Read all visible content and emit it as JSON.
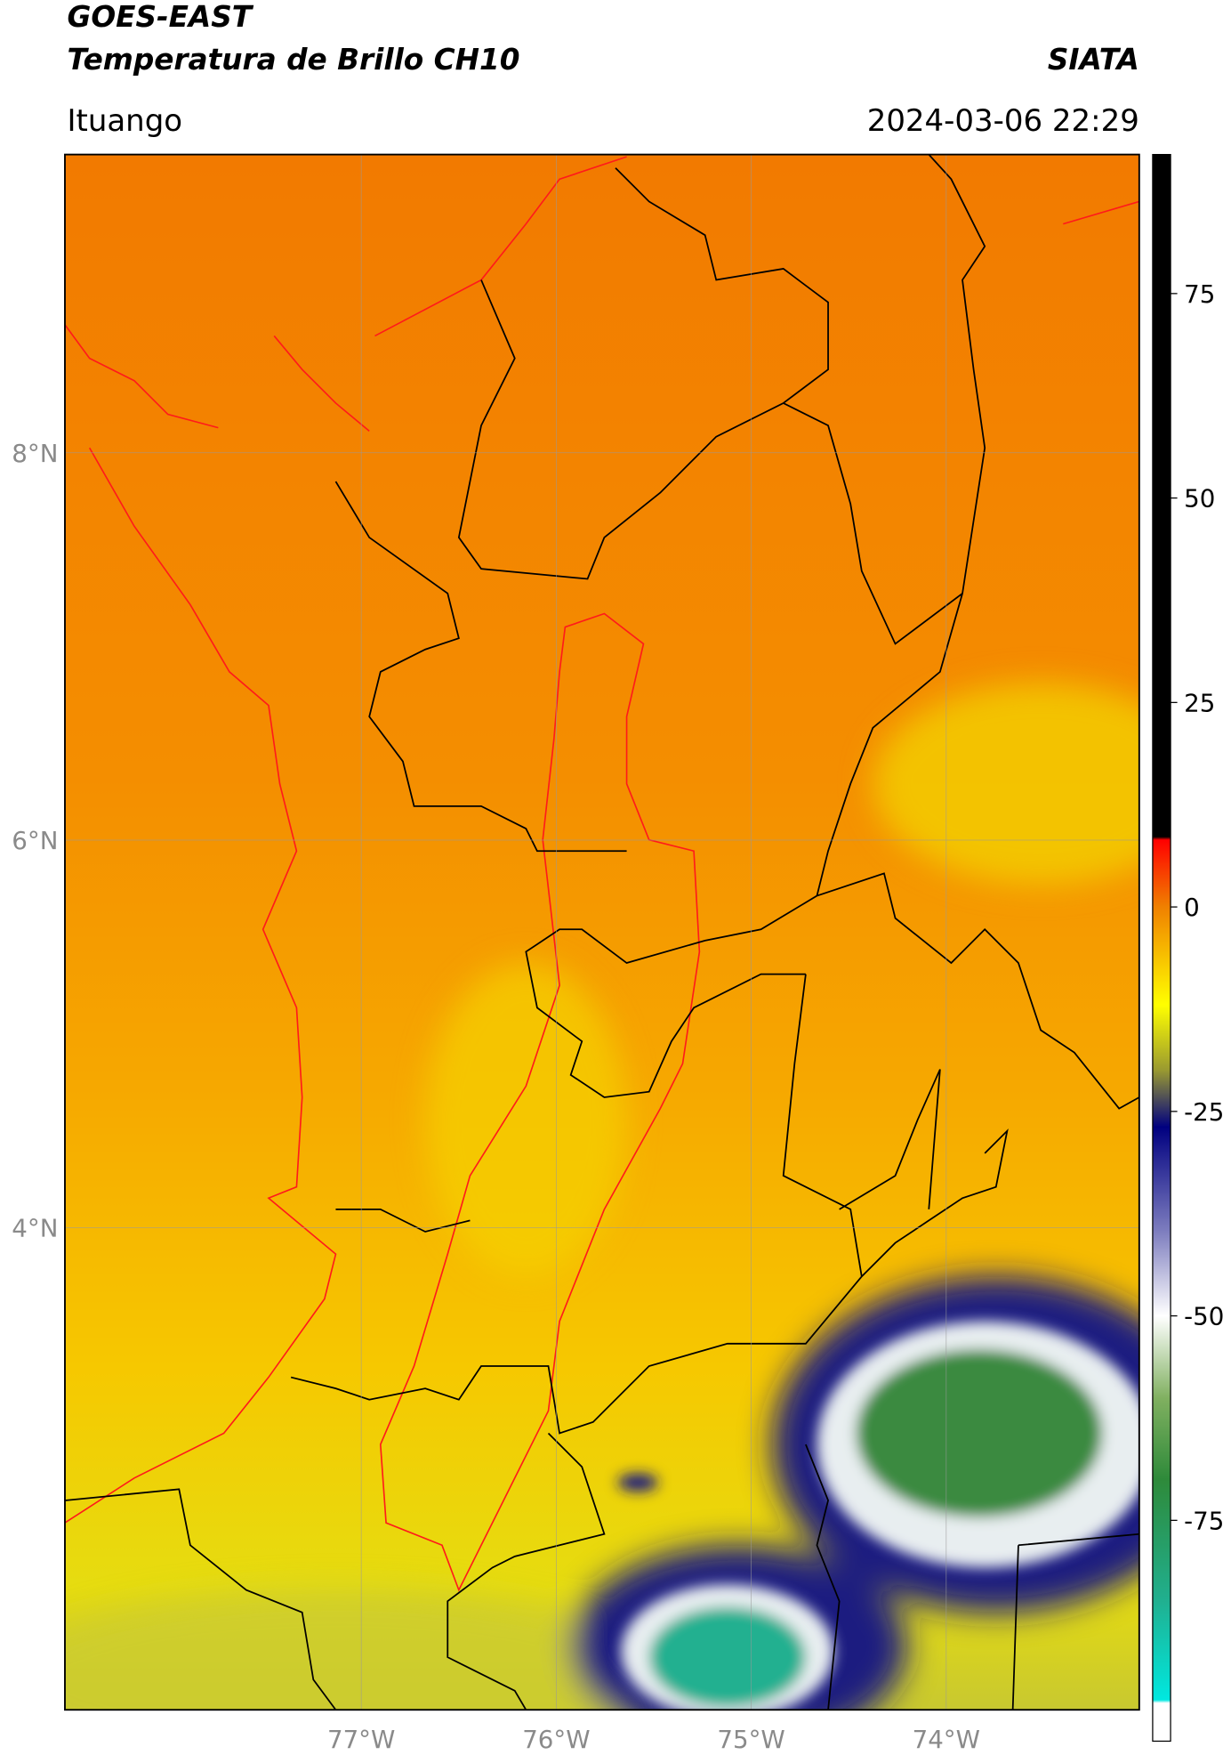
{
  "header": {
    "title": "GOES-EAST",
    "subtitle": "Temperatura de Brillo CH10",
    "organization": "SIATA",
    "region": "Ituango",
    "datetime": "2024-03-06 22:29"
  },
  "map": {
    "xlim": [
      -78.52,
      -73.01
    ],
    "ylim": [
      1.51,
      9.54
    ],
    "xticks": [
      {
        "value": -77,
        "label": "77°W"
      },
      {
        "value": -76,
        "label": "76°W"
      },
      {
        "value": -75,
        "label": "75°W"
      },
      {
        "value": -74,
        "label": "74°W"
      }
    ],
    "yticks": [
      {
        "value": 4,
        "label": "4°N"
      },
      {
        "value": 6,
        "label": "6°N"
      },
      {
        "value": 8,
        "label": "8°N"
      }
    ],
    "grid": true
  },
  "colorbar": {
    "lim": [
      -102,
      92
    ],
    "ticks": [
      -75,
      -50,
      -25,
      0,
      25,
      50,
      75
    ]
  }
}
